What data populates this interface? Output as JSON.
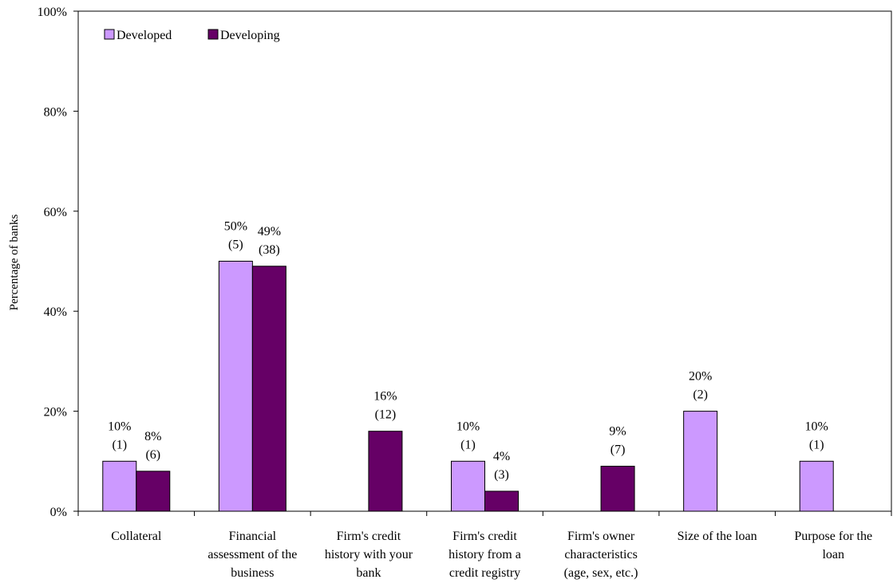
{
  "chart_data": {
    "type": "bar",
    "title": "",
    "xlabel": "",
    "ylabel": "Percentage of banks",
    "ylim": [
      0,
      100
    ],
    "yticks": [
      "0%",
      "20%",
      "40%",
      "60%",
      "80%",
      "100%"
    ],
    "grid": false,
    "legend_position": "top-left",
    "categories": [
      [
        "Collateral"
      ],
      [
        "Financial",
        "assessment of the",
        "business"
      ],
      [
        "Firm's credit",
        "history with your",
        "bank"
      ],
      [
        "Firm's credit",
        "history from a",
        "credit registry"
      ],
      [
        "Firm's owner",
        "characteristics",
        "(age, sex, etc.)"
      ],
      [
        "Size of the loan"
      ],
      [
        "Purpose for the",
        "loan"
      ]
    ],
    "series": [
      {
        "name": "Developed",
        "color": "#cc99ff",
        "values": [
          10,
          50,
          null,
          10,
          null,
          20,
          10
        ],
        "labels": [
          [
            "10%",
            "(1)"
          ],
          [
            "50%",
            "(5)"
          ],
          null,
          [
            "10%",
            "(1)"
          ],
          null,
          [
            "20%",
            "(2)"
          ],
          [
            "10%",
            "(1)"
          ]
        ]
      },
      {
        "name": "Developing",
        "color": "#660066",
        "values": [
          8,
          49,
          16,
          4,
          9,
          null,
          null
        ],
        "labels": [
          [
            "8%",
            "(6)"
          ],
          [
            "49%",
            "(38)"
          ],
          [
            "16%",
            "(12)"
          ],
          [
            "4%",
            "(3)"
          ],
          [
            "9%",
            "(7)"
          ],
          null,
          null
        ]
      }
    ]
  }
}
